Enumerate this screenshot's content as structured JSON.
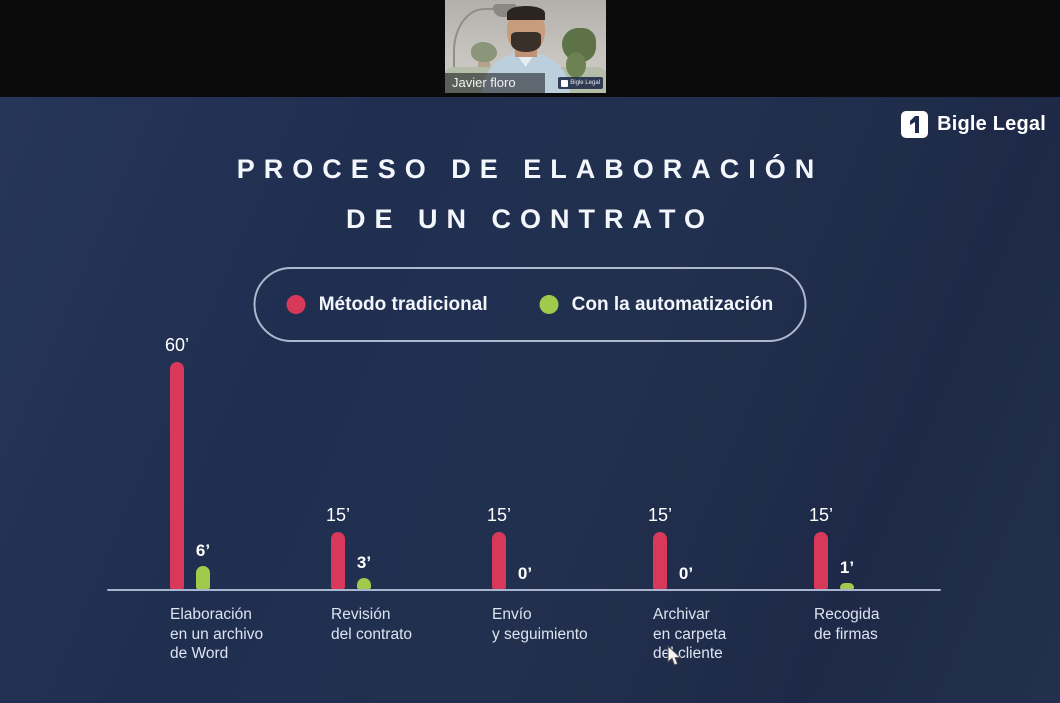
{
  "meeting": {
    "participant_name": "Javier floro",
    "video_watermark": "Bigle Legal"
  },
  "brand": {
    "name": "Bigle Legal"
  },
  "slide": {
    "title_line1": "PROCESO DE ELABORACIÓN",
    "title_line2": "DE UN CONTRATO",
    "background_color": "#202e50"
  },
  "legend": {
    "items": [
      {
        "label": "Método tradicional",
        "color": "#d8395a"
      },
      {
        "label": "Con la automatización",
        "color": "#9fca4b"
      }
    ]
  },
  "chart_data": {
    "type": "bar",
    "title": "Proceso de elaboración de un contrato",
    "unit": "minutos",
    "categories": [
      "Elaboración en un archivo de Word",
      "Revisión del contrato",
      "Envío y seguimiento",
      "Archivar en carpeta del cliente",
      "Recogida de firmas"
    ],
    "category_lines": [
      [
        "Elaboración",
        "en un archivo",
        "de Word"
      ],
      [
        "Revisión",
        "del contrato"
      ],
      [
        "Envío",
        "y seguimiento"
      ],
      [
        "Archivar",
        "en carpeta",
        "del cliente"
      ],
      [
        "Recogida",
        "de firmas"
      ]
    ],
    "series": [
      {
        "name": "Método tradicional",
        "color": "#d8395a",
        "values": [
          60,
          15,
          15,
          15,
          15
        ],
        "value_labels": [
          "60’",
          "15’",
          "15’",
          "15’",
          "15’"
        ]
      },
      {
        "name": "Con la automatización",
        "color": "#9fca4b",
        "values": [
          6,
          3,
          0,
          0,
          1
        ],
        "value_labels": [
          "6’",
          "3’",
          "0’",
          "0’",
          "1’"
        ]
      }
    ],
    "ylim": [
      0,
      60
    ],
    "grid": false,
    "legend_position": "top-center",
    "axis_color": "#a9b5cf"
  }
}
